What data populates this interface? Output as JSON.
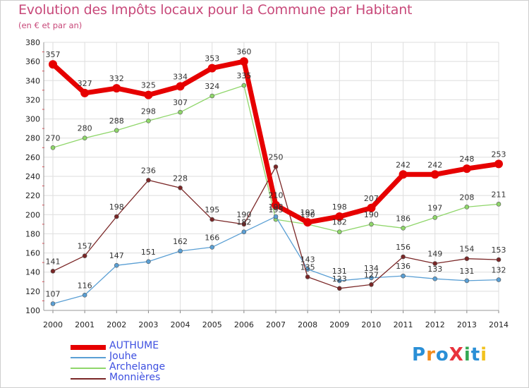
{
  "header": {
    "title": "Evolution des Impôts locaux pour la Commune par Habitant",
    "subtitle": "(en € et par an)"
  },
  "logo": {
    "text": "ProXiti",
    "colors": [
      "#2a8fd6",
      "#f28c1e",
      "#2a8fd6",
      "#e8323c",
      "#34a853",
      "#2a8fd6",
      "#f2c21e"
    ]
  },
  "colors": {
    "title": "#c8497a",
    "grid": "#dedede",
    "axis_tick_red": "#e8323c",
    "legend_text": "#3d4fe0"
  },
  "chart_data": {
    "type": "line",
    "title": "Evolution des Impôts locaux pour la Commune par Habitant",
    "subtitle": "(en € et par an)",
    "xlabel": "",
    "ylabel": "",
    "x": [
      2000,
      2001,
      2002,
      2003,
      2004,
      2005,
      2006,
      2007,
      2008,
      2009,
      2010,
      2011,
      2012,
      2013,
      2014
    ],
    "ylim": [
      100,
      380
    ],
    "yticks": [
      100,
      120,
      140,
      160,
      180,
      200,
      220,
      240,
      260,
      280,
      300,
      320,
      340,
      360,
      380
    ],
    "grid": true,
    "legend_position": "bottom-left",
    "series": [
      {
        "name": "AUTHUME",
        "color": "#e60000",
        "values": [
          357,
          327,
          332,
          325,
          334,
          353,
          360,
          210,
          192,
          198,
          207,
          242,
          242,
          248,
          253
        ],
        "labels": [
          "357",
          "327",
          "332",
          "325",
          "334",
          "353",
          "360",
          "210",
          "192",
          "198",
          "207",
          "242",
          "242",
          "248",
          "253"
        ]
      },
      {
        "name": "Jouhe",
        "color": "#5a9fd4",
        "values": [
          107,
          116,
          147,
          151,
          162,
          166,
          182,
          198,
          143,
          131,
          134,
          136,
          133,
          131,
          132
        ],
        "labels": [
          "107",
          "116",
          "147",
          "151",
          "162",
          "166",
          "182",
          "198",
          "143",
          "131",
          "134",
          "136",
          "133",
          "131",
          "132"
        ]
      },
      {
        "name": "Archelange",
        "color": "#8fd66a",
        "values": [
          270,
          280,
          288,
          298,
          307,
          324,
          335,
          195,
          190,
          182,
          190,
          186,
          197,
          208,
          211
        ],
        "labels": [
          "270",
          "280",
          "288",
          "298",
          "307",
          "324",
          "335",
          "195",
          "190",
          "182",
          "190",
          "186",
          "197",
          "208",
          "211"
        ]
      },
      {
        "name": "Monnières",
        "color": "#7a2626",
        "values": [
          141,
          157,
          198,
          236,
          228,
          195,
          190,
          250,
          135,
          123,
          127,
          156,
          149,
          154,
          153
        ],
        "labels": [
          "141",
          "157",
          "198",
          "236",
          "228",
          "195",
          "190",
          "250",
          "135",
          "123",
          "127",
          "156",
          "149",
          "154",
          "153"
        ]
      }
    ]
  }
}
